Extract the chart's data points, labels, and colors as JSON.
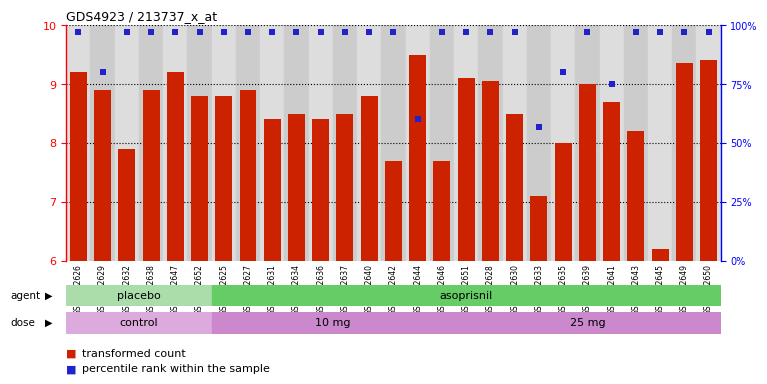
{
  "title": "GDS4923 / 213737_x_at",
  "samples": [
    "GSM1152626",
    "GSM1152629",
    "GSM1152632",
    "GSM1152638",
    "GSM1152647",
    "GSM1152652",
    "GSM1152625",
    "GSM1152627",
    "GSM1152631",
    "GSM1152634",
    "GSM1152636",
    "GSM1152637",
    "GSM1152640",
    "GSM1152642",
    "GSM1152644",
    "GSM1152646",
    "GSM1152651",
    "GSM1152628",
    "GSM1152630",
    "GSM1152633",
    "GSM1152635",
    "GSM1152639",
    "GSM1152641",
    "GSM1152643",
    "GSM1152645",
    "GSM1152649",
    "GSM1152650"
  ],
  "bar_values": [
    9.2,
    8.9,
    7.9,
    8.9,
    9.2,
    8.8,
    8.8,
    8.9,
    8.4,
    8.5,
    8.4,
    8.5,
    8.8,
    7.7,
    9.5,
    7.7,
    9.1,
    9.05,
    8.5,
    7.1,
    8.0,
    9.0,
    8.7,
    8.2,
    6.2,
    9.35,
    9.4
  ],
  "percentile_values": [
    97,
    80,
    97,
    97,
    97,
    97,
    97,
    97,
    97,
    97,
    97,
    97,
    97,
    97,
    60,
    97,
    97,
    97,
    97,
    57,
    80,
    97,
    75,
    97,
    97,
    97,
    97
  ],
  "ylim_left": [
    6,
    10
  ],
  "ylim_right": [
    0,
    100
  ],
  "yticks_left": [
    6,
    7,
    8,
    9,
    10
  ],
  "yticks_right": [
    0,
    25,
    50,
    75,
    100
  ],
  "bar_color": "#cc2200",
  "dot_color": "#2222cc",
  "agent_groups": [
    {
      "label": "placebo",
      "start": 0,
      "end": 6,
      "color": "#aaddaa"
    },
    {
      "label": "asoprisnil",
      "start": 6,
      "end": 27,
      "color": "#66cc66"
    }
  ],
  "dose_groups": [
    {
      "label": "control",
      "start": 0,
      "end": 6,
      "color": "#ddaadd"
    },
    {
      "label": "10 mg",
      "start": 6,
      "end": 16,
      "color": "#cc88cc"
    },
    {
      "label": "25 mg",
      "start": 16,
      "end": 27,
      "color": "#cc88cc"
    }
  ],
  "col_bg_even": "#dddddd",
  "col_bg_odd": "#cccccc",
  "grid_dotted_color": "#555555",
  "legend_items": [
    {
      "label": "transformed count",
      "color": "#cc2200"
    },
    {
      "label": "percentile rank within the sample",
      "color": "#2222cc"
    }
  ]
}
